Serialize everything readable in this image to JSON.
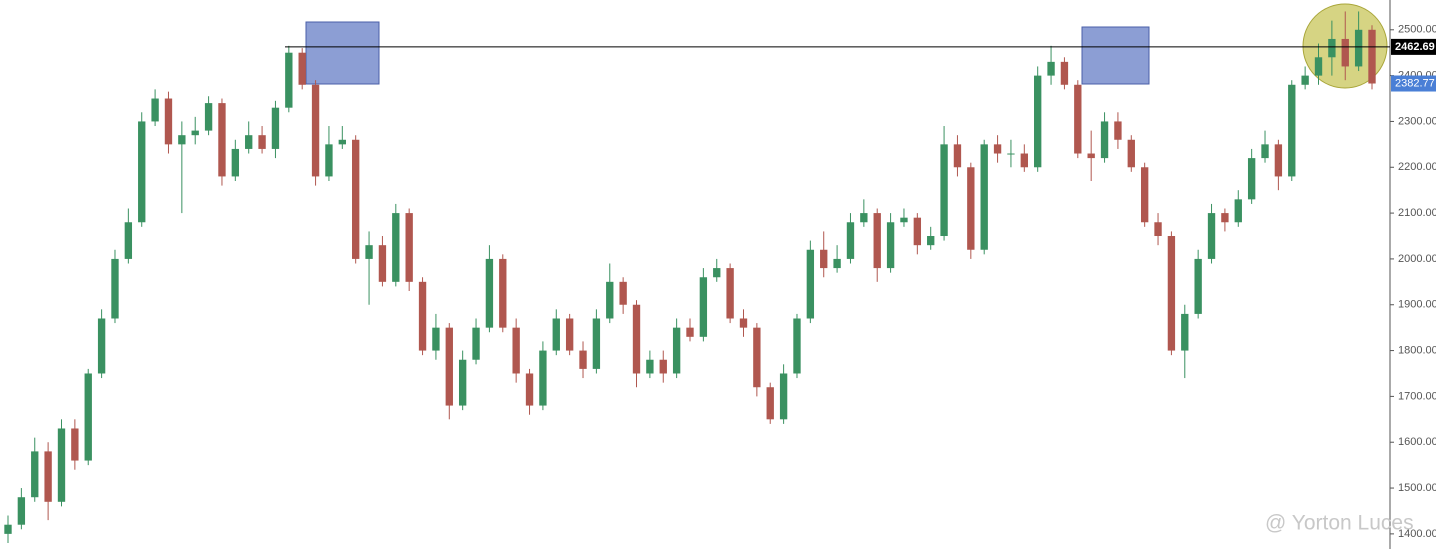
{
  "chart_data": {
    "type": "candlestick",
    "up_color": "#3a9161",
    "down_color": "#b0574f",
    "ylim": [
      1367,
      2565
    ],
    "yticks": [
      {
        "value": 1400,
        "label": "1400.00"
      },
      {
        "value": 1500,
        "label": "1500.00"
      },
      {
        "value": 1600,
        "label": "1600.00"
      },
      {
        "value": 1700,
        "label": "1700.00"
      },
      {
        "value": 1800,
        "label": "1800.00"
      },
      {
        "value": 1900,
        "label": "1900.00"
      },
      {
        "value": 2000,
        "label": "2000.00"
      },
      {
        "value": 2100,
        "label": "2100.00"
      },
      {
        "value": 2200,
        "label": "2200.00"
      },
      {
        "value": 2300,
        "label": "2300.00"
      },
      {
        "value": 2400,
        "label": "2400.00"
      },
      {
        "value": 2500,
        "label": "2500.00"
      }
    ],
    "open": [
      1400,
      1420,
      1480,
      1580,
      1470,
      1630,
      1560,
      1750,
      1870,
      2000,
      2080,
      2300,
      2350,
      2250,
      2270,
      2280,
      2340,
      2180,
      2240,
      2270,
      2240,
      2330,
      2450,
      2380,
      2180,
      2250,
      2260,
      2000,
      2030,
      1950,
      2100,
      1950,
      1800,
      1850,
      1680,
      1780,
      1850,
      2000,
      1850,
      1750,
      1680,
      1800,
      1870,
      1800,
      1760,
      1870,
      1950,
      1900,
      1750,
      1780,
      1750,
      1850,
      1830,
      1960,
      1980,
      1870,
      1850,
      1720,
      1650,
      1750,
      1870,
      2020,
      1980,
      2000,
      2080,
      2100,
      1980,
      2080,
      2090,
      2030,
      2050,
      2250,
      2200,
      2020,
      2250,
      2230,
      2230,
      2200,
      2400,
      2430,
      2380,
      2230,
      2220,
      2300,
      2260,
      2200,
      2080,
      2050,
      1800,
      1880,
      2000,
      2100,
      2080,
      2130,
      2220,
      2250,
      2180,
      2380,
      2400,
      2440,
      2480,
      2420,
      2500
    ],
    "high": [
      1440,
      1500,
      1610,
      1600,
      1650,
      1650,
      1760,
      1890,
      2020,
      2110,
      2320,
      2370,
      2365,
      2300,
      2310,
      2355,
      2350,
      2260,
      2300,
      2290,
      2345,
      2465,
      2460,
      2390,
      2290,
      2290,
      2270,
      2060,
      2050,
      2120,
      2110,
      1960,
      1880,
      1860,
      1800,
      1870,
      2030,
      2010,
      1870,
      1760,
      1820,
      1890,
      1880,
      1820,
      1890,
      1990,
      1960,
      1910,
      1800,
      1800,
      1870,
      1870,
      1980,
      2000,
      1990,
      1890,
      1860,
      1730,
      1770,
      1880,
      2040,
      2060,
      2030,
      2100,
      2130,
      2110,
      2100,
      2110,
      2100,
      2070,
      2290,
      2270,
      2210,
      2260,
      2270,
      2260,
      2250,
      2420,
      2465,
      2440,
      2390,
      2280,
      2320,
      2320,
      2270,
      2210,
      2100,
      2060,
      1900,
      2020,
      2120,
      2110,
      2150,
      2240,
      2280,
      2260,
      2390,
      2420,
      2470,
      2520,
      2540,
      2540,
      2510
    ],
    "low": [
      1380,
      1410,
      1470,
      1430,
      1460,
      1540,
      1550,
      1740,
      1860,
      1990,
      2070,
      2290,
      2230,
      2100,
      2250,
      2270,
      2160,
      2170,
      2230,
      2230,
      2220,
      2320,
      2370,
      2160,
      2170,
      2240,
      1990,
      1900,
      1940,
      1940,
      1930,
      1790,
      1780,
      1650,
      1670,
      1770,
      1840,
      1840,
      1730,
      1660,
      1670,
      1790,
      1790,
      1740,
      1750,
      1860,
      1880,
      1720,
      1740,
      1730,
      1740,
      1820,
      1820,
      1950,
      1860,
      1830,
      1700,
      1640,
      1640,
      1740,
      1860,
      1960,
      1970,
      1990,
      2070,
      1950,
      1970,
      2070,
      2010,
      2020,
      2040,
      2180,
      2000,
      2010,
      2210,
      2200,
      2190,
      2190,
      2380,
      2370,
      2220,
      2170,
      2210,
      2240,
      2190,
      2070,
      2030,
      1790,
      1740,
      1870,
      1990,
      2060,
      2070,
      2120,
      2210,
      2150,
      2170,
      2370,
      2380,
      2400,
      2390,
      2410,
      2370
    ],
    "close": [
      1420,
      1480,
      1580,
      1470,
      1630,
      1560,
      1750,
      1870,
      2000,
      2080,
      2300,
      2350,
      2250,
      2270,
      2280,
      2340,
      2180,
      2240,
      2270,
      2240,
      2330,
      2450,
      2380,
      2180,
      2250,
      2260,
      2000,
      2030,
      1950,
      2100,
      1950,
      1800,
      1850,
      1680,
      1780,
      1850,
      2000,
      1850,
      1750,
      1680,
      1800,
      1870,
      1800,
      1760,
      1870,
      1950,
      1900,
      1750,
      1780,
      1750,
      1850,
      1830,
      1960,
      1980,
      1870,
      1850,
      1720,
      1650,
      1750,
      1870,
      2020,
      1980,
      2000,
      2080,
      2100,
      1980,
      2080,
      2090,
      2030,
      2050,
      2250,
      2200,
      2020,
      2250,
      2230,
      2230,
      2200,
      2400,
      2430,
      2380,
      2230,
      2220,
      2300,
      2260,
      2200,
      2080,
      2050,
      1800,
      1880,
      2000,
      2100,
      2080,
      2130,
      2220,
      2250,
      2180,
      2380,
      2400,
      2440,
      2480,
      2420,
      2500,
      2382.77
    ],
    "hline": {
      "value": 2462.69,
      "color": "#000000"
    },
    "last_price": 2382.77,
    "last_price_color": "#4a7fd6",
    "watermark": "@ Yorton Luces"
  }
}
